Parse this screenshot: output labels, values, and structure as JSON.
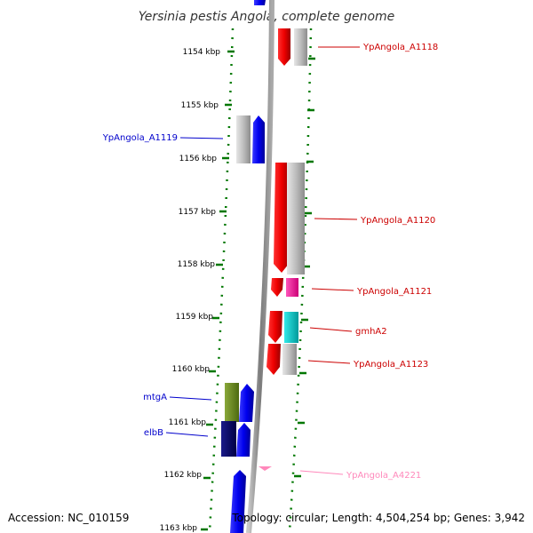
{
  "title": "Yersinia pestis Angola, complete genome",
  "footer": {
    "accession": "Accession: NC_010159",
    "summary": "Topology: circular; Length: 4,504,254 bp; Genes: 3,942"
  },
  "ticks": [
    "1154 kbp",
    "1155 kbp",
    "1156 kbp",
    "1157 kbp",
    "1158 kbp",
    "1159 kbp",
    "1160 kbp",
    "1161 kbp",
    "1162 kbp",
    "1163 kbp"
  ],
  "genes": [
    {
      "name": "YpAngola_A1118",
      "strand": "reverse",
      "color": "#cc0000"
    },
    {
      "name": "YpAngola_A1119",
      "strand": "forward",
      "color": "#0000cc"
    },
    {
      "name": "YpAngola_A1120",
      "strand": "reverse",
      "color": "#cc0000"
    },
    {
      "name": "YpAngola_A1121",
      "strand": "reverse",
      "color": "#cc0000"
    },
    {
      "name": "gmhA2",
      "strand": "reverse",
      "color": "#cc0000"
    },
    {
      "name": "YpAngola_A1123",
      "strand": "reverse",
      "color": "#cc0000"
    },
    {
      "name": "mtgA",
      "strand": "forward",
      "color": "#0000cc"
    },
    {
      "name": "elbB",
      "strand": "forward",
      "color": "#0000cc"
    },
    {
      "name": "YpAngola_A4221",
      "strand": "reverse",
      "color": "#ff88bb"
    }
  ]
}
